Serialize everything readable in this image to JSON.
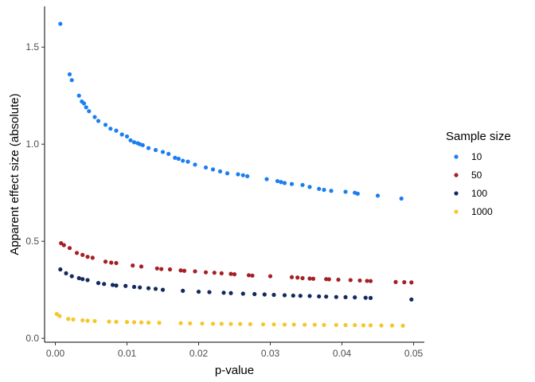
{
  "chart_data": {
    "type": "scatter",
    "title": "",
    "xlabel": "p-value",
    "ylabel": "Apparent effect size (absolute)",
    "xlim": [
      -0.0015,
      0.0515
    ],
    "ylim": [
      -0.02,
      1.71
    ],
    "xticks": [
      0.0,
      0.01,
      0.02,
      0.03,
      0.04,
      0.05
    ],
    "xtick_labels": [
      "0.00",
      "0.01",
      "0.02",
      "0.03",
      "0.04",
      "0.05"
    ],
    "yticks": [
      0.0,
      0.5,
      1.0,
      1.5
    ],
    "ytick_labels": [
      "0.0",
      "0.5",
      "1.0",
      "1.5"
    ],
    "grid": false,
    "legend": {
      "title": "Sample size",
      "position": "right"
    },
    "series": [
      {
        "name": "10",
        "color": "#1a7ff2",
        "points": [
          [
            0.0007,
            1.62
          ],
          [
            0.002,
            1.36
          ],
          [
            0.0023,
            1.33
          ],
          [
            0.0033,
            1.25
          ],
          [
            0.0037,
            1.22
          ],
          [
            0.004,
            1.21
          ],
          [
            0.0043,
            1.19
          ],
          [
            0.0047,
            1.17
          ],
          [
            0.0055,
            1.14
          ],
          [
            0.006,
            1.12
          ],
          [
            0.007,
            1.1
          ],
          [
            0.0077,
            1.08
          ],
          [
            0.0085,
            1.07
          ],
          [
            0.0093,
            1.05
          ],
          [
            0.01,
            1.04
          ],
          [
            0.0105,
            1.02
          ],
          [
            0.011,
            1.01
          ],
          [
            0.0115,
            1.005
          ],
          [
            0.0118,
            1.0
          ],
          [
            0.0122,
            0.995
          ],
          [
            0.013,
            0.98
          ],
          [
            0.014,
            0.97
          ],
          [
            0.015,
            0.96
          ],
          [
            0.0158,
            0.95
          ],
          [
            0.0167,
            0.93
          ],
          [
            0.0172,
            0.925
          ],
          [
            0.0178,
            0.915
          ],
          [
            0.0185,
            0.91
          ],
          [
            0.0195,
            0.895
          ],
          [
            0.021,
            0.88
          ],
          [
            0.022,
            0.87
          ],
          [
            0.023,
            0.86
          ],
          [
            0.024,
            0.85
          ],
          [
            0.0255,
            0.845
          ],
          [
            0.0262,
            0.84
          ],
          [
            0.0268,
            0.835
          ],
          [
            0.0295,
            0.82
          ],
          [
            0.031,
            0.81
          ],
          [
            0.0315,
            0.805
          ],
          [
            0.032,
            0.8
          ],
          [
            0.033,
            0.795
          ],
          [
            0.0345,
            0.79
          ],
          [
            0.0355,
            0.78
          ],
          [
            0.0368,
            0.77
          ],
          [
            0.0375,
            0.765
          ],
          [
            0.0385,
            0.76
          ],
          [
            0.0405,
            0.755
          ],
          [
            0.0418,
            0.75
          ],
          [
            0.0422,
            0.745
          ],
          [
            0.045,
            0.735
          ],
          [
            0.0483,
            0.72
          ]
        ]
      },
      {
        "name": "50",
        "color": "#a52025",
        "points": [
          [
            0.0008,
            0.49
          ],
          [
            0.0012,
            0.48
          ],
          [
            0.002,
            0.465
          ],
          [
            0.003,
            0.44
          ],
          [
            0.0038,
            0.43
          ],
          [
            0.0045,
            0.42
          ],
          [
            0.0052,
            0.415
          ],
          [
            0.007,
            0.395
          ],
          [
            0.0078,
            0.39
          ],
          [
            0.0085,
            0.388
          ],
          [
            0.0108,
            0.375
          ],
          [
            0.012,
            0.37
          ],
          [
            0.0142,
            0.36
          ],
          [
            0.0148,
            0.357
          ],
          [
            0.016,
            0.355
          ],
          [
            0.0175,
            0.35
          ],
          [
            0.018,
            0.348
          ],
          [
            0.0195,
            0.345
          ],
          [
            0.021,
            0.34
          ],
          [
            0.0222,
            0.338
          ],
          [
            0.0232,
            0.335
          ],
          [
            0.0245,
            0.332
          ],
          [
            0.025,
            0.33
          ],
          [
            0.027,
            0.325
          ],
          [
            0.0275,
            0.323
          ],
          [
            0.03,
            0.32
          ],
          [
            0.033,
            0.315
          ],
          [
            0.0338,
            0.313
          ],
          [
            0.0345,
            0.31
          ],
          [
            0.0355,
            0.308
          ],
          [
            0.036,
            0.307
          ],
          [
            0.0378,
            0.305
          ],
          [
            0.0382,
            0.304
          ],
          [
            0.0395,
            0.302
          ],
          [
            0.0412,
            0.3
          ],
          [
            0.0425,
            0.298
          ],
          [
            0.0435,
            0.296
          ],
          [
            0.044,
            0.295
          ],
          [
            0.0475,
            0.29
          ],
          [
            0.0487,
            0.289
          ],
          [
            0.0497,
            0.288
          ]
        ]
      },
      {
        "name": "100",
        "color": "#122a5e",
        "points": [
          [
            0.0007,
            0.355
          ],
          [
            0.0015,
            0.335
          ],
          [
            0.0023,
            0.32
          ],
          [
            0.0033,
            0.31
          ],
          [
            0.0038,
            0.305
          ],
          [
            0.0045,
            0.3
          ],
          [
            0.006,
            0.285
          ],
          [
            0.0068,
            0.28
          ],
          [
            0.008,
            0.275
          ],
          [
            0.0085,
            0.272
          ],
          [
            0.0098,
            0.27
          ],
          [
            0.011,
            0.265
          ],
          [
            0.0118,
            0.262
          ],
          [
            0.013,
            0.258
          ],
          [
            0.014,
            0.255
          ],
          [
            0.015,
            0.25
          ],
          [
            0.0178,
            0.245
          ],
          [
            0.02,
            0.24
          ],
          [
            0.0215,
            0.238
          ],
          [
            0.0235,
            0.235
          ],
          [
            0.0245,
            0.233
          ],
          [
            0.0262,
            0.23
          ],
          [
            0.0278,
            0.228
          ],
          [
            0.0292,
            0.226
          ],
          [
            0.0305,
            0.224
          ],
          [
            0.032,
            0.222
          ],
          [
            0.0332,
            0.22
          ],
          [
            0.0342,
            0.219
          ],
          [
            0.0355,
            0.218
          ],
          [
            0.0368,
            0.216
          ],
          [
            0.0378,
            0.215
          ],
          [
            0.0392,
            0.213
          ],
          [
            0.0405,
            0.212
          ],
          [
            0.0418,
            0.211
          ],
          [
            0.0433,
            0.209
          ],
          [
            0.044,
            0.208
          ],
          [
            0.0497,
            0.2
          ]
        ]
      },
      {
        "name": "1000",
        "color": "#f5c72b",
        "points": [
          [
            0.0002,
            0.125
          ],
          [
            0.0006,
            0.115
          ],
          [
            0.0018,
            0.1
          ],
          [
            0.0025,
            0.097
          ],
          [
            0.0038,
            0.093
          ],
          [
            0.0045,
            0.091
          ],
          [
            0.0055,
            0.089
          ],
          [
            0.0075,
            0.086
          ],
          [
            0.0085,
            0.085
          ],
          [
            0.01,
            0.084
          ],
          [
            0.011,
            0.083
          ],
          [
            0.012,
            0.082
          ],
          [
            0.013,
            0.081
          ],
          [
            0.0145,
            0.08
          ],
          [
            0.0175,
            0.078
          ],
          [
            0.0188,
            0.077
          ],
          [
            0.0205,
            0.076
          ],
          [
            0.022,
            0.075
          ],
          [
            0.0232,
            0.075
          ],
          [
            0.0245,
            0.074
          ],
          [
            0.0258,
            0.074
          ],
          [
            0.0272,
            0.073
          ],
          [
            0.029,
            0.072
          ],
          [
            0.0305,
            0.072
          ],
          [
            0.032,
            0.071
          ],
          [
            0.0333,
            0.071
          ],
          [
            0.0348,
            0.07
          ],
          [
            0.0362,
            0.07
          ],
          [
            0.0375,
            0.069
          ],
          [
            0.0392,
            0.069
          ],
          [
            0.0405,
            0.068
          ],
          [
            0.0418,
            0.068
          ],
          [
            0.043,
            0.067
          ],
          [
            0.044,
            0.067
          ],
          [
            0.0455,
            0.066
          ],
          [
            0.047,
            0.066
          ],
          [
            0.0485,
            0.065
          ]
        ]
      }
    ]
  }
}
